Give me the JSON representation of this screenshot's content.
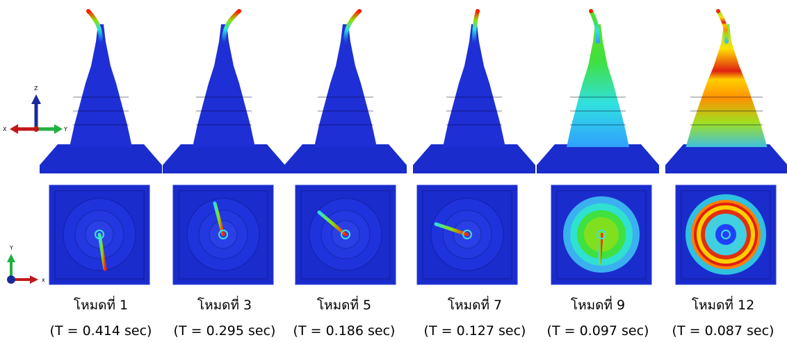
{
  "axes_top": {
    "x": "X",
    "y": "Y",
    "z": "Z"
  },
  "axes_bottom": {
    "x": "x",
    "y": "Y"
  },
  "modes": [
    {
      "label": "โหมดที่ 1",
      "period": "(T = 0.414 sec)"
    },
    {
      "label": "โหมดที่ 3",
      "period": "(T = 0.295 sec)"
    },
    {
      "label": "โหมดที่ 5",
      "period": "(T = 0.186 sec)"
    },
    {
      "label": "โหมดที่ 7",
      "period": "(T = 0.127 sec)"
    },
    {
      "label": "โหมดที่ 9",
      "period": "(T = 0.097 sec)"
    },
    {
      "label": "โหมดที่ 12",
      "period": "(T = 0.087 sec)"
    }
  ]
}
